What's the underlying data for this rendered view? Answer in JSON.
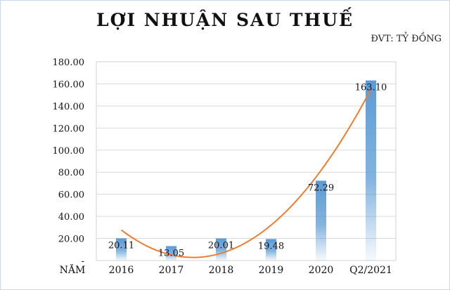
{
  "chart_data": {
    "type": "bar",
    "title": "LỢI NHUẬN SAU THUẾ",
    "unit_label": "ĐVT: TỶ ĐỒNG",
    "xlabel": "NĂM",
    "ylabel": "",
    "categories": [
      "2016",
      "2017",
      "2018",
      "2019",
      "2020",
      "Q2/2021"
    ],
    "values": [
      20.11,
      13.05,
      20.01,
      19.48,
      72.29,
      163.1
    ],
    "value_labels": [
      "20.11",
      "13.05",
      "20.01",
      "19.48",
      "72.29",
      "163.10"
    ],
    "ylim": [
      0,
      180
    ],
    "yticks": [
      {
        "value": 0,
        "label": "-"
      },
      {
        "value": 20,
        "label": "20.00"
      },
      {
        "value": 40,
        "label": "40.00"
      },
      {
        "value": 60,
        "label": "60.00"
      },
      {
        "value": 80,
        "label": "80.00"
      },
      {
        "value": 100,
        "label": "100.00"
      },
      {
        "value": 120,
        "label": "120.00"
      },
      {
        "value": 140,
        "label": "140.00"
      },
      {
        "value": 160,
        "label": "160.00"
      },
      {
        "value": 180,
        "label": "180.00"
      }
    ],
    "grid": true,
    "trendline": {
      "type": "polynomial",
      "color": "#ed7d31"
    },
    "colors": {
      "bar": "#5b9bd5",
      "grid": "#d9d9d9",
      "trend": "#ed7d31"
    }
  }
}
